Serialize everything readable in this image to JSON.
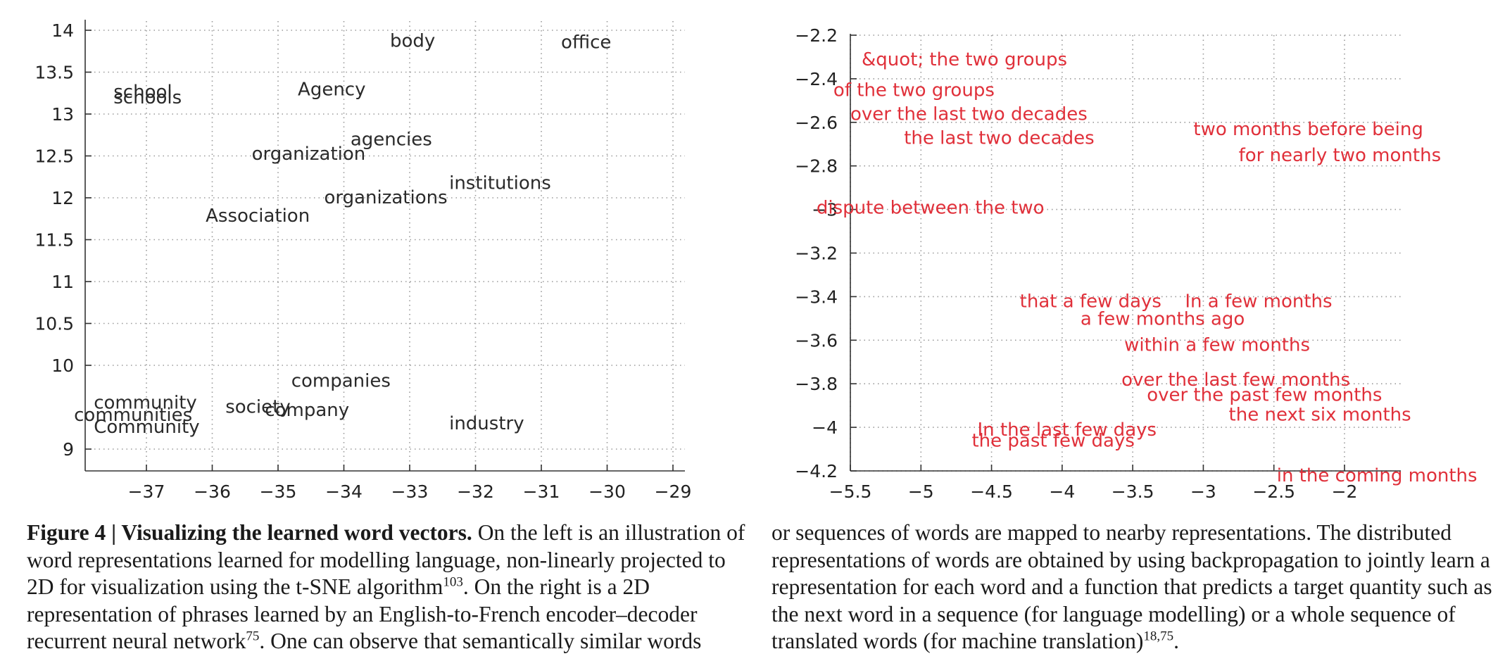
{
  "chart_data": [
    {
      "type": "scatter",
      "title": "",
      "xlabel": "",
      "ylabel": "",
      "xlim": [
        -38,
        -28.8
      ],
      "ylim": [
        8.7,
        14.1
      ],
      "grid": true,
      "xticks": [
        -37,
        -36,
        -35,
        -34,
        -33,
        -32,
        -31,
        -30,
        -29
      ],
      "yticks": [
        9,
        10,
        10.5,
        11,
        11.5,
        12,
        12.5,
        13,
        13.5,
        14
      ],
      "xtick_labels": [
        "−37",
        "−36",
        "−35",
        "−34",
        "−33",
        "−32",
        "−31",
        "−30",
        "−29"
      ],
      "ytick_labels": [
        "9",
        "10",
        "10.5",
        "11",
        "11.5",
        "12",
        "12.5",
        "13",
        "13.5",
        "14"
      ],
      "color": "#2a2a2a",
      "points": [
        {
          "label": "body",
          "x": -33.3,
          "y": 13.88
        },
        {
          "label": "office",
          "x": -30.7,
          "y": 13.86
        },
        {
          "label": "school",
          "x": -37.5,
          "y": 13.27
        },
        {
          "label": "schools",
          "x": -37.5,
          "y": 13.2
        },
        {
          "label": "Agency",
          "x": -34.7,
          "y": 13.3
        },
        {
          "label": "agencies",
          "x": -33.9,
          "y": 12.7
        },
        {
          "label": "organization",
          "x": -35.4,
          "y": 12.53
        },
        {
          "label": "institutions",
          "x": -32.4,
          "y": 12.18
        },
        {
          "label": "organizations",
          "x": -34.3,
          "y": 12.01
        },
        {
          "label": "Association",
          "x": -36.1,
          "y": 11.79
        },
        {
          "label": "companies",
          "x": -34.8,
          "y": 9.82
        },
        {
          "label": "community",
          "x": -37.8,
          "y": 9.56
        },
        {
          "label": "society",
          "x": -35.8,
          "y": 9.51
        },
        {
          "label": "company",
          "x": -35.2,
          "y": 9.47
        },
        {
          "label": "communities",
          "x": -38.1,
          "y": 9.41
        },
        {
          "label": "Community",
          "x": -37.8,
          "y": 9.27
        },
        {
          "label": "industry",
          "x": -32.4,
          "y": 9.31
        }
      ]
    },
    {
      "type": "scatter",
      "title": "",
      "xlabel": "",
      "ylabel": "",
      "xlim": [
        -5.5,
        -1.6
      ],
      "ylim": [
        -4.2,
        -2.2
      ],
      "grid": true,
      "xticks": [
        -5.5,
        -5,
        -4.5,
        -4,
        -3.5,
        -3,
        -2.5,
        -2
      ],
      "yticks": [
        -2.2,
        -2.4,
        -2.6,
        -2.8,
        -3,
        -3.2,
        -3.4,
        -3.6,
        -3.8,
        -4,
        -4.2
      ],
      "xtick_labels": [
        "−5.5",
        "−5",
        "−4.5",
        "−4",
        "−3.5",
        "−3",
        "−2.5",
        "−2"
      ],
      "ytick_labels": [
        "−2.2",
        "−2.4",
        "−2.6",
        "−2.8",
        "−3",
        "−3.2",
        "−3.4",
        "−3.6",
        "−3.8",
        "−4",
        "−4.2"
      ],
      "color": "#e0303a",
      "points": [
        {
          "label": "&quot; the two groups",
          "x": -5.42,
          "y": -2.31
        },
        {
          "label": "of the two groups",
          "x": -5.62,
          "y": -2.45
        },
        {
          "label": "over the last two decades",
          "x": -5.5,
          "y": -2.56
        },
        {
          "label": "the last two decades",
          "x": -5.12,
          "y": -2.67
        },
        {
          "label": "two months before being",
          "x": -3.07,
          "y": -2.63
        },
        {
          "label": "for nearly two months",
          "x": -2.75,
          "y": -2.75
        },
        {
          "label": "dispute between the two",
          "x": -5.74,
          "y": -2.99
        },
        {
          "label": "that a few days",
          "x": -4.3,
          "y": -3.42
        },
        {
          "label": "In a few months",
          "x": -3.13,
          "y": -3.42
        },
        {
          "label": "a few months ago",
          "x": -3.87,
          "y": -3.5
        },
        {
          "label": "within a few months",
          "x": -3.56,
          "y": -3.62
        },
        {
          "label": "over the last few months",
          "x": -3.58,
          "y": -3.78
        },
        {
          "label": "over the past few months",
          "x": -3.4,
          "y": -3.85
        },
        {
          "label": "the next six months",
          "x": -2.82,
          "y": -3.94
        },
        {
          "label": "In the last few days",
          "x": -4.6,
          "y": -4.01
        },
        {
          "label": "the past few days",
          "x": -4.64,
          "y": -4.06
        },
        {
          "label": "in the coming months",
          "x": -2.48,
          "y": -4.22
        }
      ]
    }
  ],
  "caption": {
    "figure_label": "Figure 4 | Visualizing the learned word vectors.",
    "left_part1": " On the left is an illustration of word representations learned for modelling language, non-linearly projected to 2D for visualization using the t-SNE algorithm",
    "left_ref1": "103",
    "left_part2": ". On the right is a 2D representation of phrases learned by an English-to-French encoder–decoder recurrent neural network",
    "left_ref2": "75",
    "left_part3": ". One can observe that semantically similar words",
    "right_part1": "or sequences of words are mapped to nearby representations. The distributed representations of words are obtained by using backpropagation to jointly learn a representation for each word and a function that predicts a target quantity such as the next word in a sequence (for language modelling) or a whole sequence of translated words (for machine translation)",
    "right_ref": "18,75",
    "right_part2": "."
  }
}
